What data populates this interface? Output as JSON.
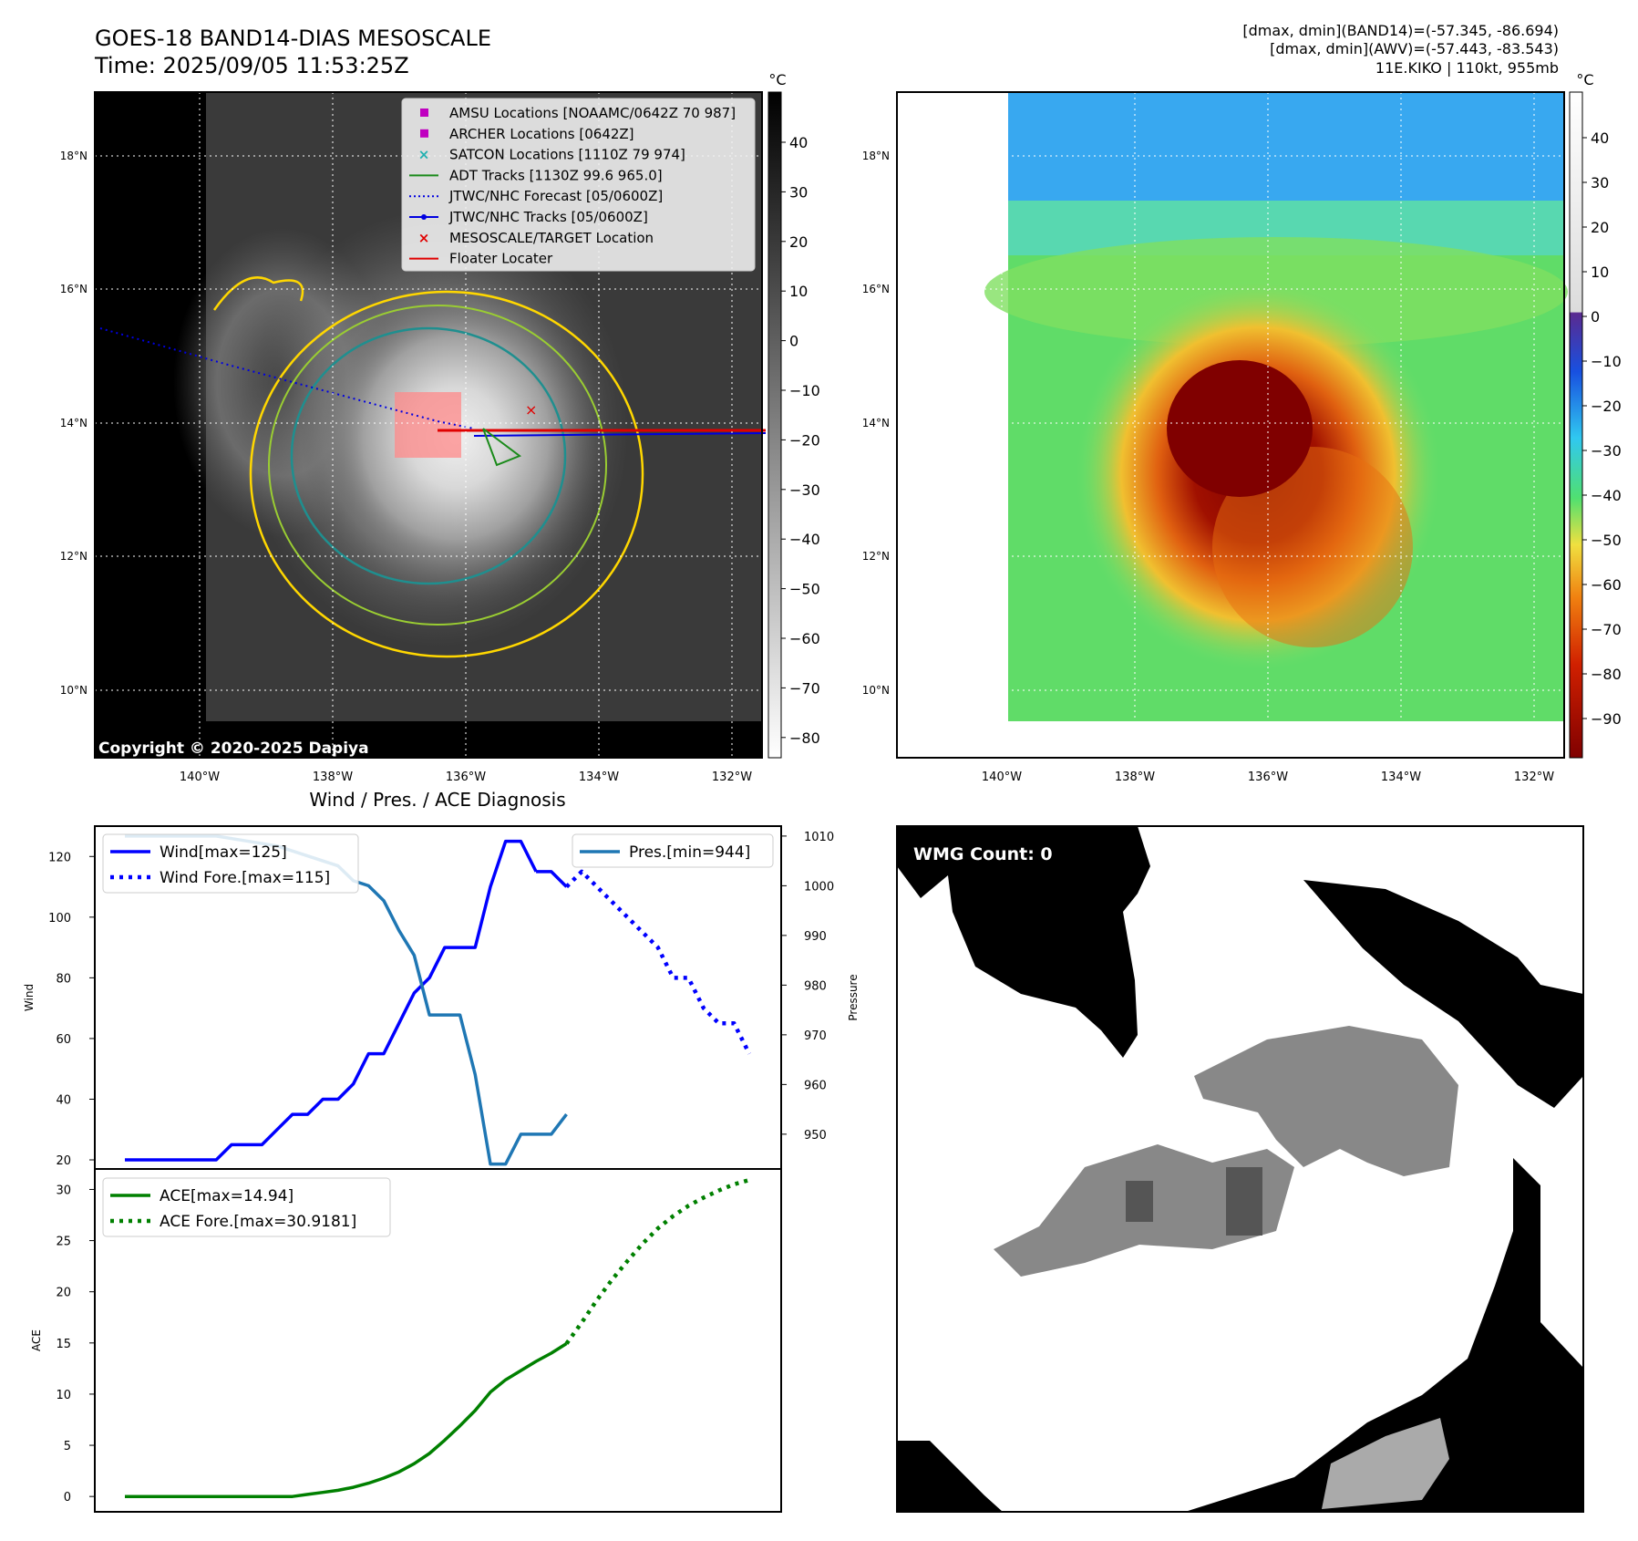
{
  "title": {
    "line1": "GOES-18 BAND14-DIAS MESOSCALE",
    "line2": "Time: 2025/09/05 11:53:25Z"
  },
  "header_right": {
    "line1": "[dmax, dmin](BAND14)=(-57.345, -86.694)",
    "line2": "[dmax, dmin](AWV)=(-57.443, -83.543)",
    "line3": "11E.KIKO | 110kt, 955mb"
  },
  "copyright": "Copyright © 2020-2025 Dapiya",
  "colorbar_unit": "°C",
  "map_axes": {
    "lat_labels": [
      "18°N",
      "16°N",
      "14°N",
      "12°N",
      "10°N"
    ],
    "lon_labels": [
      "140°W",
      "138°W",
      "136°W",
      "134°W",
      "132°W"
    ]
  },
  "colorbar_left_ticks": [
    "40",
    "30",
    "20",
    "10",
    "0",
    "−10",
    "−20",
    "−30",
    "−40",
    "−50",
    "−60",
    "−70",
    "−80"
  ],
  "colorbar_right_ticks": [
    "40",
    "30",
    "20",
    "10",
    "0",
    "−10",
    "−20",
    "−30",
    "−40",
    "−50",
    "−60",
    "−70",
    "−80",
    "−90"
  ],
  "legend": [
    {
      "label": "AMSU Locations [NOAAMC/0642Z 70 987]",
      "color": "#c000c0",
      "marker": "square"
    },
    {
      "label": "ARCHER Locations [0642Z]",
      "color": "#c000c0",
      "marker": "square"
    },
    {
      "label": "SATCON Locations [1110Z 79 974]",
      "color": "#20b0b0",
      "marker": "x"
    },
    {
      "label": "ADT Tracks [1130Z 99.6 965.0]",
      "color": "#1a8a1a",
      "marker": "line"
    },
    {
      "label": "JTWC/NHC Forecast [05/0600Z]",
      "color": "#0000e0",
      "marker": "dotted"
    },
    {
      "label": "JTWC/NHC Tracks [05/0600Z]",
      "color": "#0000e0",
      "marker": "line-dot"
    },
    {
      "label": "MESOSCALE/TARGET Location",
      "color": "#e00000",
      "marker": "x"
    },
    {
      "label": "Floater Locater",
      "color": "#e00000",
      "marker": "line"
    }
  ],
  "wmg_label": "WMG Count: 0",
  "chart_data": [
    {
      "type": "line",
      "title": "Wind / Pres. / ACE Diagnosis",
      "ylabel": "Wind",
      "y2label": "Pressure",
      "ylim": [
        17,
        130
      ],
      "y2lim": [
        943,
        1012
      ],
      "yticks": [
        20,
        40,
        60,
        80,
        100,
        120
      ],
      "y2ticks": [
        950,
        960,
        970,
        980,
        990,
        1000,
        1010
      ],
      "x_index_range": [
        0,
        41
      ],
      "series": [
        {
          "name": "Wind[max=125]",
          "color": "#0000ff",
          "style": "solid",
          "axis": "left",
          "x": [
            0,
            1,
            2,
            3,
            4,
            5,
            6,
            7,
            8,
            9,
            10,
            11,
            12,
            13,
            14,
            15,
            16,
            17,
            18,
            19,
            20,
            21,
            22,
            23,
            24,
            25,
            26,
            27
          ],
          "values": [
            20,
            20,
            20,
            20,
            20,
            20,
            20,
            25,
            25,
            25,
            30,
            35,
            35,
            40,
            40,
            45,
            55,
            55,
            65,
            75,
            80,
            90,
            90,
            90,
            110,
            125,
            125,
            115
          ]
        },
        {
          "name": "Wind[max=125]",
          "color": "#0000ff",
          "style": "solid",
          "axis": "left",
          "x": [
            27,
            28,
            29
          ],
          "values": [
            115,
            115,
            110
          ]
        },
        {
          "name": "Wind Fore.[max=115]",
          "color": "#0000ff",
          "style": "dotted",
          "axis": "left",
          "x": [
            29,
            30,
            31,
            32,
            33,
            34,
            35,
            36,
            37,
            38,
            39,
            40,
            41
          ],
          "values": [
            110,
            115,
            110,
            105,
            100,
            95,
            90,
            80,
            80,
            70,
            65,
            65,
            55
          ]
        },
        {
          "name": "Pres.[min=944]",
          "color": "#1f77b4",
          "style": "solid",
          "axis": "right",
          "x": [
            0,
            2,
            4,
            6,
            8,
            10,
            12,
            14,
            15,
            16,
            17,
            18,
            19,
            20,
            21,
            22,
            23,
            24,
            25,
            26,
            27,
            28,
            29
          ],
          "values": [
            1010,
            1010,
            1010,
            1010,
            1009,
            1008,
            1006,
            1004,
            1001,
            1000,
            997,
            991,
            986,
            974,
            974,
            974,
            962,
            944,
            944,
            950,
            950,
            950,
            954
          ]
        }
      ],
      "legend_left": [
        "Wind[max=125]",
        "Wind Fore.[max=115]"
      ],
      "legend_right": [
        "Pres.[min=944]"
      ]
    },
    {
      "type": "line",
      "ylabel": "ACE",
      "ylim": [
        -1.5,
        32
      ],
      "yticks": [
        0,
        5,
        10,
        15,
        20,
        25,
        30
      ],
      "x_index_range": [
        0,
        41
      ],
      "series": [
        {
          "name": "ACE[max=14.94]",
          "color": "#008000",
          "style": "solid",
          "x": [
            0,
            2,
            4,
            6,
            8,
            10,
            11,
            12,
            13,
            14,
            15,
            16,
            17,
            18,
            19,
            20,
            21,
            22,
            23,
            24,
            25,
            26,
            27,
            28,
            29
          ],
          "values": [
            0,
            0,
            0,
            0,
            0,
            0,
            0,
            0.2,
            0.4,
            0.6,
            0.9,
            1.3,
            1.8,
            2.4,
            3.2,
            4.2,
            5.5,
            6.9,
            8.4,
            10.2,
            11.4,
            12.3,
            13.2,
            14.0,
            14.94
          ]
        },
        {
          "name": "ACE Fore.[max=30.9181]",
          "color": "#008000",
          "style": "dotted",
          "x": [
            29,
            30,
            31,
            32,
            33,
            34,
            35,
            36,
            37,
            38,
            39,
            40,
            41
          ],
          "values": [
            14.94,
            17.0,
            19.2,
            21.2,
            23.0,
            24.7,
            26.2,
            27.4,
            28.4,
            29.2,
            29.9,
            30.5,
            30.92
          ]
        }
      ],
      "legend": [
        "ACE[max=14.94]",
        "ACE Fore.[max=30.9181]"
      ]
    }
  ]
}
